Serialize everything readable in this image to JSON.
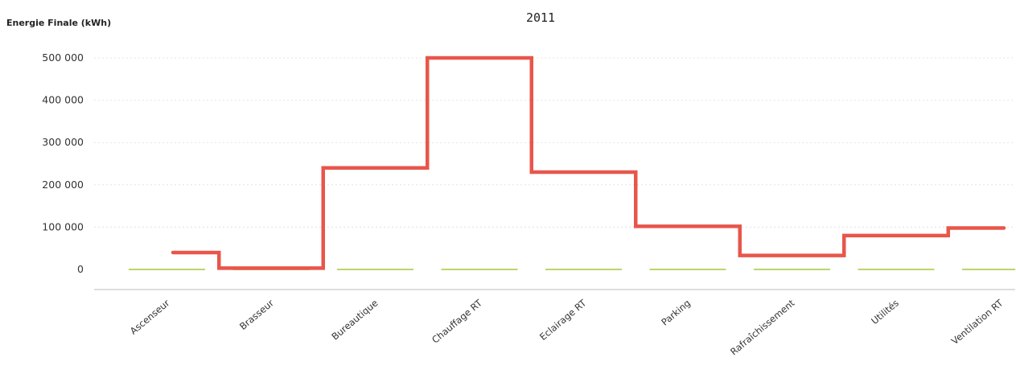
{
  "chart_data": {
    "type": "line",
    "title": "2011",
    "ylabel": "Energie Finale (kWh)",
    "xlabel": "",
    "categories": [
      "Ascenseur",
      "Brasseur",
      "Bureautique",
      "Chauffage RT",
      "Eclairage RT",
      "Parking",
      "Rafraîchissement",
      "Utilités",
      "Ventilation RT"
    ],
    "ylim": [
      -50000,
      540000
    ],
    "yticks": [
      0,
      100000,
      200000,
      300000,
      400000,
      500000
    ],
    "ytick_labels": [
      "0",
      "100 000",
      "200 000",
      "300 000",
      "400 000",
      "500 000"
    ],
    "grid": true,
    "series": [
      {
        "values": [
          40000,
          3000,
          240000,
          500000,
          230000,
          102000,
          33000,
          80000,
          98000
        ],
        "color": "#e8564a",
        "style": "step"
      },
      {
        "values": [
          0,
          0,
          0,
          0,
          0,
          0,
          0,
          0,
          0
        ],
        "color": "#b8d86a",
        "style": "segments"
      }
    ]
  }
}
